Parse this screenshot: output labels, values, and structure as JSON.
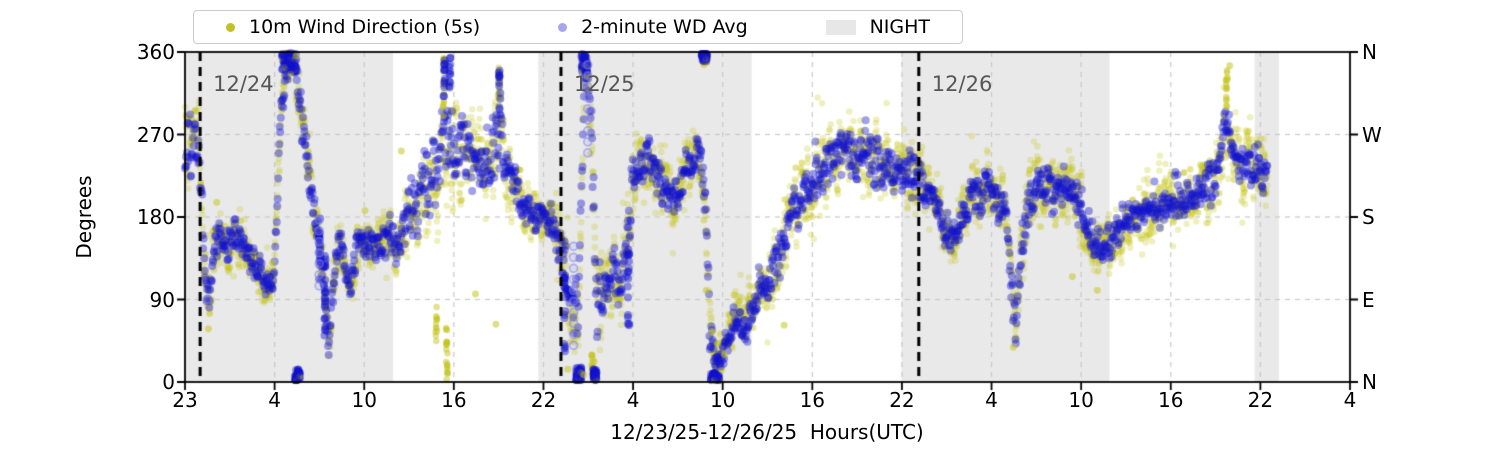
{
  "chart_data": {
    "type": "scatter",
    "title": "",
    "xlabel": "12/23/25-12/26/25  Hours(UTC)",
    "ylabel": "Degrees",
    "ylim": [
      0,
      360
    ],
    "yticks": [
      0,
      90,
      180,
      270,
      360
    ],
    "right_axis_labels": [
      "N",
      "E",
      "S",
      "W",
      "N"
    ],
    "xtick_labels": [
      "23",
      "4",
      "10",
      "16",
      "22",
      "4",
      "10",
      "16",
      "22",
      "4",
      "10",
      "16",
      "22",
      "4"
    ],
    "x_hours_range": [
      0,
      77
    ],
    "grid": true,
    "legend_position": "top",
    "legend": [
      {
        "label": "10m Wind Direction (5s)",
        "marker": "dot",
        "color": "#c2c226"
      },
      {
        "label": "2-minute WD Avg",
        "marker": "dot",
        "color": "#a6a6ee"
      },
      {
        "label": "NIGHT",
        "marker": "patch",
        "color": "#e7e7e7"
      }
    ],
    "colors": {
      "night": "#e9e9e9",
      "grid": "#c8c8c8",
      "axis": "#000000",
      "date_line": "#000000",
      "date_label": "#565656",
      "wind_5s": "#c4c41e",
      "wd_avg": "#1111cd",
      "wd_avg_faint": "#9090ec"
    },
    "night_bands": [
      [
        0,
        13.75
      ],
      [
        23.35,
        37.45
      ],
      [
        47.35,
        61.1
      ],
      [
        70.7,
        72.3
      ]
    ],
    "date_lines": [
      {
        "t": 1.0,
        "label": "12/24"
      },
      {
        "t": 24.85,
        "label": "12/25"
      },
      {
        "t": 48.5,
        "label": "12/26"
      }
    ],
    "series": [
      {
        "name": "10m Wind Direction (5s)",
        "sample_step_hours": 0.02,
        "marker_radius": 3.2
      },
      {
        "name": "2-minute WD Avg",
        "sample_step_hours": 0.0333,
        "marker_radius": 4.0
      }
    ],
    "wind_direction_keyframes": [
      [
        0.0,
        260,
        40,
        50
      ],
      [
        0.9,
        250,
        35,
        45
      ],
      [
        1.3,
        120,
        30,
        35
      ],
      [
        1.6,
        90,
        20,
        28
      ],
      [
        1.9,
        150,
        22,
        30
      ],
      [
        2.3,
        160,
        20,
        28
      ],
      [
        2.8,
        145,
        20,
        28
      ],
      [
        3.3,
        165,
        18,
        25
      ],
      [
        3.8,
        150,
        20,
        28
      ],
      [
        4.3,
        135,
        20,
        28
      ],
      [
        4.9,
        120,
        18,
        25
      ],
      [
        5.4,
        105,
        15,
        22
      ],
      [
        5.9,
        120,
        15,
        22
      ],
      [
        6.3,
        280,
        25,
        35
      ],
      [
        6.7,
        345,
        15,
        25
      ],
      [
        7.2,
        350,
        12,
        20
      ],
      [
        7.7,
        290,
        25,
        30
      ],
      [
        8.1,
        230,
        25,
        30
      ],
      [
        8.4,
        195,
        20,
        28
      ],
      [
        8.8,
        160,
        15,
        22
      ],
      [
        9.2,
        110,
        25,
        30
      ],
      [
        9.5,
        35,
        15,
        22
      ],
      [
        9.9,
        130,
        20,
        28
      ],
      [
        10.3,
        150,
        20,
        28
      ],
      [
        10.9,
        100,
        18,
        25
      ],
      [
        11.4,
        150,
        18,
        25
      ],
      [
        11.9,
        155,
        18,
        25
      ],
      [
        12.4,
        150,
        18,
        25
      ],
      [
        13.0,
        150,
        20,
        28
      ],
      [
        13.6,
        160,
        22,
        30
      ],
      [
        14.1,
        145,
        25,
        32
      ],
      [
        14.7,
        185,
        30,
        40
      ],
      [
        15.3,
        195,
        35,
        45
      ],
      [
        15.9,
        220,
        40,
        55
      ],
      [
        16.5,
        230,
        45,
        60
      ],
      [
        17.1,
        260,
        50,
        70
      ],
      [
        17.7,
        250,
        50,
        70
      ],
      [
        18.3,
        260,
        40,
        55
      ],
      [
        18.9,
        245,
        40,
        50
      ],
      [
        19.5,
        235,
        35,
        45
      ],
      [
        20.1,
        235,
        35,
        45
      ],
      [
        20.7,
        260,
        45,
        55
      ],
      [
        21.3,
        235,
        35,
        45
      ],
      [
        21.9,
        210,
        25,
        35
      ],
      [
        22.5,
        190,
        20,
        30
      ],
      [
        23.1,
        185,
        18,
        28
      ],
      [
        23.8,
        180,
        18,
        28
      ],
      [
        24.4,
        175,
        20,
        30
      ],
      [
        24.8,
        150,
        25,
        35
      ],
      [
        25.2,
        120,
        30,
        40
      ],
      [
        25.6,
        70,
        35,
        45
      ],
      [
        26.0,
        90,
        40,
        50
      ],
      [
        26.4,
        330,
        25,
        35
      ],
      [
        26.8,
        300,
        40,
        50
      ],
      [
        27.2,
        80,
        35,
        45
      ],
      [
        27.6,
        90,
        30,
        40
      ],
      [
        28.0,
        110,
        25,
        35
      ],
      [
        28.4,
        120,
        25,
        35
      ],
      [
        28.8,
        100,
        30,
        40
      ],
      [
        29.2,
        150,
        35,
        45
      ],
      [
        29.6,
        220,
        30,
        40
      ],
      [
        30.0,
        240,
        25,
        35
      ],
      [
        30.6,
        245,
        25,
        35
      ],
      [
        31.2,
        225,
        25,
        35
      ],
      [
        31.8,
        205,
        22,
        32
      ],
      [
        32.4,
        200,
        22,
        32
      ],
      [
        33.0,
        225,
        25,
        35
      ],
      [
        33.6,
        240,
        25,
        35
      ],
      [
        34.1,
        245,
        25,
        35
      ],
      [
        34.4,
        200,
        30,
        40
      ],
      [
        34.7,
        60,
        30,
        40
      ],
      [
        35.0,
        30,
        18,
        28
      ],
      [
        35.5,
        25,
        15,
        25
      ],
      [
        36.0,
        55,
        20,
        30
      ],
      [
        36.5,
        70,
        20,
        30
      ],
      [
        37.0,
        55,
        18,
        28
      ],
      [
        37.6,
        90,
        22,
        32
      ],
      [
        38.2,
        105,
        25,
        35
      ],
      [
        38.8,
        120,
        25,
        35
      ],
      [
        39.4,
        140,
        25,
        35
      ],
      [
        40.0,
        180,
        28,
        38
      ],
      [
        40.6,
        200,
        28,
        38
      ],
      [
        41.2,
        215,
        28,
        40
      ],
      [
        41.9,
        230,
        28,
        40
      ],
      [
        42.6,
        240,
        28,
        40
      ],
      [
        43.4,
        250,
        28,
        40
      ],
      [
        44.2,
        245,
        28,
        40
      ],
      [
        45.0,
        250,
        28,
        40
      ],
      [
        45.8,
        240,
        28,
        40
      ],
      [
        46.6,
        235,
        26,
        38
      ],
      [
        47.4,
        230,
        25,
        35
      ],
      [
        48.2,
        225,
        25,
        35
      ],
      [
        49.0,
        215,
        25,
        35
      ],
      [
        49.6,
        195,
        22,
        32
      ],
      [
        50.2,
        165,
        20,
        30
      ],
      [
        50.8,
        160,
        20,
        30
      ],
      [
        51.3,
        175,
        20,
        30
      ],
      [
        51.8,
        200,
        22,
        32
      ],
      [
        52.4,
        205,
        22,
        32
      ],
      [
        53.0,
        210,
        25,
        35
      ],
      [
        53.6,
        200,
        25,
        35
      ],
      [
        54.2,
        195,
        25,
        35
      ],
      [
        54.6,
        120,
        30,
        40
      ],
      [
        54.9,
        55,
        20,
        30
      ],
      [
        55.3,
        140,
        28,
        38
      ],
      [
        55.8,
        200,
        25,
        35
      ],
      [
        56.4,
        220,
        25,
        35
      ],
      [
        57.0,
        215,
        25,
        35
      ],
      [
        57.7,
        205,
        25,
        35
      ],
      [
        58.4,
        215,
        25,
        35
      ],
      [
        59.0,
        200,
        25,
        35
      ],
      [
        59.6,
        175,
        25,
        35
      ],
      [
        60.2,
        150,
        25,
        35
      ],
      [
        60.8,
        145,
        22,
        32
      ],
      [
        61.4,
        155,
        22,
        32
      ],
      [
        62.0,
        170,
        22,
        32
      ],
      [
        62.7,
        180,
        22,
        32
      ],
      [
        63.4,
        190,
        24,
        34
      ],
      [
        64.1,
        185,
        24,
        34
      ],
      [
        64.8,
        200,
        24,
        34
      ],
      [
        65.5,
        205,
        24,
        34
      ],
      [
        66.2,
        200,
        24,
        34
      ],
      [
        66.9,
        210,
        24,
        34
      ],
      [
        67.6,
        215,
        24,
        34
      ],
      [
        68.3,
        225,
        25,
        35
      ],
      [
        68.8,
        290,
        25,
        40
      ],
      [
        69.2,
        250,
        25,
        38
      ],
      [
        69.8,
        235,
        24,
        34
      ],
      [
        70.4,
        240,
        24,
        34
      ],
      [
        71.0,
        235,
        22,
        32
      ],
      [
        71.55,
        225,
        22,
        32
      ]
    ],
    "vertical_excursions": [
      {
        "s": "y",
        "t": 17.1,
        "lo": 290,
        "hi": 358
      },
      {
        "s": "b",
        "t": 17.15,
        "lo": 300,
        "hi": 352
      },
      {
        "s": "y",
        "t": 17.3,
        "lo": 15,
        "hi": 60
      },
      {
        "s": "y",
        "t": 17.35,
        "lo": 2,
        "hi": 20
      },
      {
        "s": "y",
        "t": 16.6,
        "lo": 40,
        "hi": 90
      },
      {
        "s": "y",
        "t": 20.75,
        "lo": 300,
        "hi": 348
      },
      {
        "s": "b",
        "t": 20.8,
        "lo": 295,
        "hi": 340
      },
      {
        "s": "b",
        "t": 17.5,
        "lo": 320,
        "hi": 357
      },
      {
        "s": "y",
        "t": 26.9,
        "lo": 5,
        "hi": 30
      },
      {
        "s": "b",
        "t": 29.3,
        "lo": 60,
        "hi": 145
      },
      {
        "s": "y",
        "t": 68.85,
        "lo": 300,
        "hi": 346
      },
      {
        "s": "b",
        "t": 25.1,
        "lo": 30,
        "hi": 120
      },
      {
        "s": "b",
        "t": 8.9,
        "lo": 110,
        "hi": 180
      },
      {
        "s": "b",
        "t": 9.25,
        "lo": 40,
        "hi": 150
      }
    ],
    "top_wrap_clusters": [
      [
        6.4,
        7.4,
        340,
        360
      ],
      [
        26.2,
        26.6,
        338,
        360
      ],
      [
        34.15,
        34.5,
        350,
        360
      ]
    ],
    "bottom_wrap_clusters": [
      [
        7.25,
        7.6,
        0,
        14
      ],
      [
        25.85,
        26.2,
        0,
        16
      ],
      [
        27.0,
        27.2,
        2,
        14
      ],
      [
        34.75,
        35.3,
        0,
        10
      ]
    ],
    "yellow_outliers": [
      [
        1.55,
        58
      ],
      [
        2.1,
        196
      ],
      [
        5.77,
        130
      ],
      [
        11.9,
        187
      ],
      [
        14.3,
        252
      ],
      [
        19.2,
        96
      ],
      [
        20.55,
        63
      ],
      [
        25.3,
        14
      ],
      [
        26.35,
        8
      ],
      [
        27.05,
        22
      ],
      [
        34.45,
        100
      ],
      [
        34.85,
        55
      ],
      [
        35.2,
        42
      ],
      [
        35.65,
        30
      ],
      [
        36.3,
        95
      ],
      [
        39.6,
        62
      ],
      [
        54.75,
        38
      ],
      [
        58.65,
        115
      ],
      [
        60.3,
        100
      ],
      [
        68.9,
        332
      ],
      [
        69.05,
        345
      ]
    ],
    "avg_marker_ladders": [
      {
        "t": 8.87,
        "lo": 105,
        "hi": 185
      },
      {
        "t": 26.62,
        "lo": 250,
        "hi": 352
      },
      {
        "t": 25.68,
        "lo": 40,
        "hi": 150
      },
      {
        "t": 1.45,
        "lo": 90,
        "hi": 100
      }
    ]
  }
}
